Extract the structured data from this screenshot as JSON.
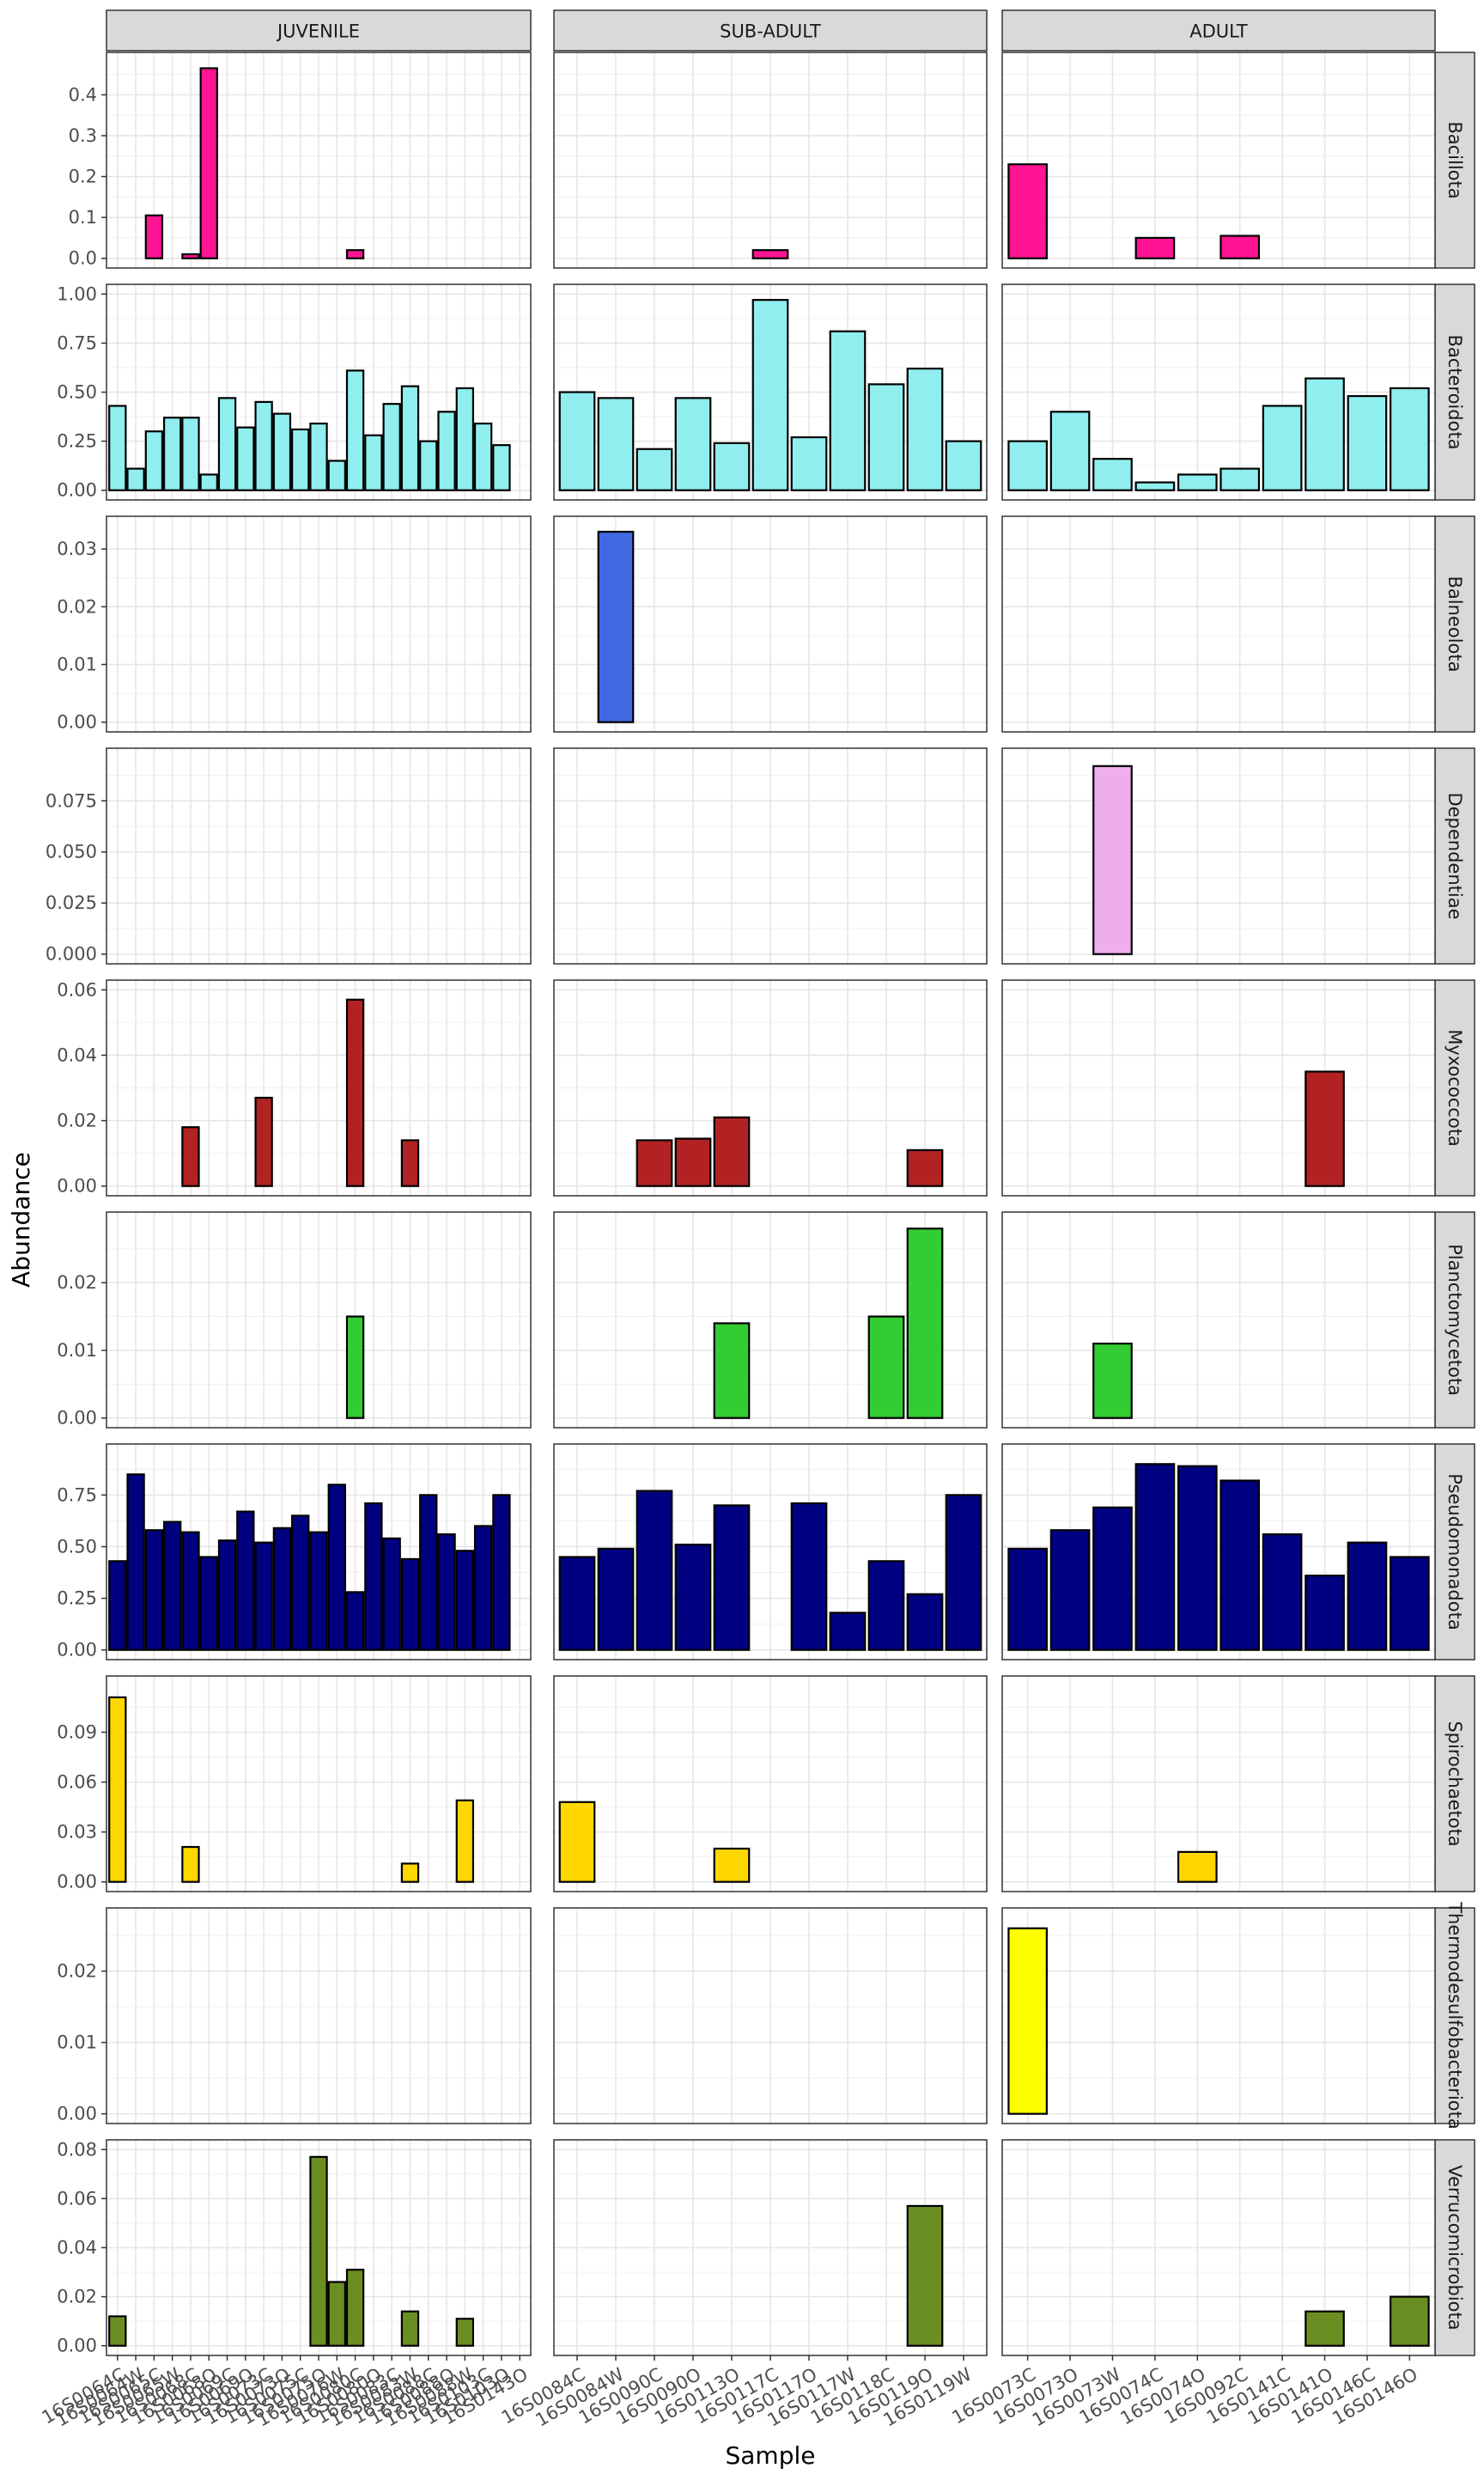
{
  "chart_data": {
    "type": "bar",
    "xlabel": "Sample",
    "ylabel": "Abundance",
    "legend": "none",
    "grid": true,
    "columns": [
      {
        "label": "JUVENILE",
        "samples": [
          "16S0064C",
          "16S0064W",
          "16S0065C",
          "16S0065W",
          "16S0068C",
          "16S0068O",
          "16S0069C",
          "16S0069O",
          "16S0073C",
          "16S0073O",
          "16S0075C",
          "16S0075O",
          "16S0076W",
          "16S0080C",
          "16S0080O",
          "16S0083C",
          "16S0083W",
          "16S0088C",
          "16S0088O",
          "16S0088W",
          "16S0103C",
          "16S0103O",
          "16S0143O"
        ],
        "tick_labels": [
          "16S0064C",
          "16S0064W",
          "16S0065C",
          "16S0065W",
          "16S0068C",
          "16S0068O",
          "16S0069C",
          "16S0069O",
          "16S0073C",
          "16S0073O",
          "16S0075C",
          "16S0075O",
          "16S0076W",
          "16S0080C",
          "16S0080O",
          "16S0083C",
          "16S0083W",
          "16S0088C",
          "16S0088O",
          "16S0088W",
          "16S0103C",
          "16S0103O",
          "16S0143O"
        ]
      },
      {
        "label": "SUB-ADULT",
        "samples": [
          "16S0084C",
          "16S0084W",
          "16S0090C",
          "16S0090O",
          "16S0113O",
          "16S0117C",
          "16S0117O",
          "16S0117W",
          "16S0118C",
          "16S0119O",
          "16S0119W"
        ],
        "tick_labels": [
          "16S0084C",
          "16S0084W",
          "16S0090C",
          "16S0090O",
          "16S0113O",
          "16S0117C",
          "16S0117O",
          "16S0117W",
          "16S0118C",
          "16S0119O",
          "16S0119W"
        ]
      },
      {
        "label": "ADULT",
        "samples": [
          "16S0073C",
          "16S0073O",
          "16S0073W",
          "16S0074C",
          "16S0074O",
          "16S0092C",
          "16S0141C",
          "16S0141O",
          "16S0146C",
          "16S0146O"
        ],
        "tick_labels": [
          "16S0073C",
          "16S0073O",
          "16S0073W",
          "16S0074C",
          "16S0074O",
          "16S0092C",
          "16S0141C",
          "16S0141O",
          "16S0146C",
          "16S0146O"
        ]
      }
    ],
    "rows": [
      {
        "label": "Bacillota",
        "color": "#ff1493",
        "ylim": [
          0,
          0.48
        ],
        "ticks": [
          0,
          0.1,
          0.2,
          0.3,
          0.4
        ],
        "tick_labels": [
          "0.0",
          "0.1",
          "0.2",
          "0.3",
          "0.4"
        ],
        "values": [
          [
            0,
            0,
            0.105,
            0,
            0.01,
            0.465,
            0,
            0,
            0,
            0,
            0,
            0,
            0,
            0.02,
            0,
            0,
            0,
            0,
            0,
            0,
            0,
            0,
            0
          ],
          [
            0,
            0,
            0,
            0,
            0,
            0.02,
            0,
            0,
            0,
            0,
            0
          ],
          [
            0.23,
            0,
            0,
            0.05,
            0,
            0.055,
            0,
            0,
            0,
            0
          ]
        ]
      },
      {
        "label": "Bacteroidota",
        "color": "#90eeee",
        "ylim": [
          0,
          1.0
        ],
        "ticks": [
          0,
          0.25,
          0.5,
          0.75,
          1.0
        ],
        "tick_labels": [
          "0.00",
          "0.25",
          "0.50",
          "0.75",
          "1.00"
        ],
        "values": [
          [
            0.43,
            0.11,
            0.3,
            0.37,
            0.37,
            0.08,
            0.47,
            0.32,
            0.45,
            0.39,
            0.31,
            0.34,
            0.15,
            0.61,
            0.28,
            0.44,
            0.53,
            0.25,
            0.4,
            0.52,
            0.34,
            0.23,
            0
          ],
          [
            0.5,
            0.47,
            0.21,
            0.47,
            0.24,
            0.97,
            0.27,
            0.81,
            0.54,
            0.62,
            0.25
          ],
          [
            0.25,
            0.4,
            0.16,
            0.04,
            0.08,
            0.11,
            0.43,
            0.57,
            0.48,
            0.52
          ]
        ]
      },
      {
        "label": "Balneolota",
        "color": "#4169e1",
        "ylim": [
          0,
          0.034
        ],
        "ticks": [
          0,
          0.01,
          0.02,
          0.03
        ],
        "tick_labels": [
          "0.00",
          "0.01",
          "0.02",
          "0.03"
        ],
        "values": [
          [
            0,
            0,
            0,
            0,
            0,
            0,
            0,
            0,
            0,
            0,
            0,
            0,
            0,
            0,
            0,
            0,
            0,
            0,
            0,
            0,
            0,
            0,
            0
          ],
          [
            0,
            0.033,
            0,
            0,
            0,
            0,
            0,
            0,
            0,
            0,
            0
          ],
          [
            0,
            0,
            0,
            0,
            0,
            0,
            0,
            0,
            0,
            0
          ]
        ]
      },
      {
        "label": "Dependentiae",
        "color": "#eeaeee",
        "ylim": [
          0,
          0.096
        ],
        "ticks": [
          0,
          0.025,
          0.05,
          0.075
        ],
        "tick_labels": [
          "0.000",
          "0.025",
          "0.050",
          "0.075"
        ],
        "values": [
          [
            0,
            0,
            0,
            0,
            0,
            0,
            0,
            0,
            0,
            0,
            0,
            0,
            0,
            0,
            0,
            0,
            0,
            0,
            0,
            0,
            0,
            0,
            0
          ],
          [
            0,
            0,
            0,
            0,
            0,
            0,
            0,
            0,
            0,
            0,
            0
          ],
          [
            0,
            0,
            0.092,
            0,
            0,
            0,
            0,
            0,
            0,
            0
          ]
        ]
      },
      {
        "label": "Myxococcota",
        "color": "#b22222",
        "ylim": [
          0,
          0.06
        ],
        "ticks": [
          0,
          0.02,
          0.04,
          0.06
        ],
        "tick_labels": [
          "0.00",
          "0.02",
          "0.04",
          "0.06"
        ],
        "values": [
          [
            0,
            0,
            0,
            0,
            0.018,
            0,
            0,
            0,
            0.027,
            0,
            0,
            0,
            0,
            0.057,
            0,
            0,
            0.014,
            0,
            0,
            0,
            0,
            0,
            0
          ],
          [
            0,
            0,
            0.014,
            0.0145,
            0.021,
            0,
            0,
            0,
            0,
            0.011,
            0
          ],
          [
            0,
            0,
            0,
            0,
            0,
            0,
            0,
            0.035,
            0,
            0
          ]
        ]
      },
      {
        "label": "Planctomycetota",
        "color": "#32cd32",
        "ylim": [
          0,
          0.029
        ],
        "ticks": [
          0,
          0.01,
          0.02
        ],
        "tick_labels": [
          "0.00",
          "0.01",
          "0.02"
        ],
        "values": [
          [
            0,
            0,
            0,
            0,
            0,
            0,
            0,
            0,
            0,
            0,
            0,
            0,
            0,
            0.015,
            0,
            0,
            0,
            0,
            0,
            0,
            0,
            0,
            0
          ],
          [
            0,
            0,
            0,
            0,
            0.014,
            0,
            0,
            0,
            0.015,
            0.028,
            0
          ],
          [
            0,
            0,
            0.011,
            0,
            0,
            0,
            0,
            0,
            0,
            0
          ]
        ]
      },
      {
        "label": "Pseudomonadota",
        "color": "#000080",
        "ylim": [
          0,
          0.95
        ],
        "ticks": [
          0,
          0.25,
          0.5,
          0.75
        ],
        "tick_labels": [
          "0.00",
          "0.25",
          "0.50",
          "0.75"
        ],
        "values": [
          [
            0.43,
            0.85,
            0.58,
            0.62,
            0.57,
            0.45,
            0.53,
            0.67,
            0.52,
            0.59,
            0.65,
            0.57,
            0.8,
            0.28,
            0.71,
            0.54,
            0.44,
            0.75,
            0.56,
            0.48,
            0.6,
            0.75,
            0
          ],
          [
            0.45,
            0.49,
            0.77,
            0.51,
            0.7,
            0,
            0.71,
            0.18,
            0.43,
            0.27,
            0.75
          ],
          [
            0.49,
            0.58,
            0.69,
            0.9,
            0.89,
            0.82,
            0.56,
            0.36,
            0.52,
            0.45
          ]
        ]
      },
      {
        "label": "Spirochaetota",
        "color": "#ffd700",
        "ylim": [
          0,
          0.118
        ],
        "ticks": [
          0,
          0.03,
          0.06,
          0.09
        ],
        "tick_labels": [
          "0.00",
          "0.03",
          "0.06",
          "0.09"
        ],
        "values": [
          [
            0.111,
            0,
            0,
            0,
            0.021,
            0,
            0,
            0,
            0,
            0,
            0,
            0,
            0,
            0,
            0,
            0,
            0.011,
            0,
            0,
            0.049,
            0,
            0,
            0
          ],
          [
            0.048,
            0,
            0,
            0,
            0.02,
            0,
            0,
            0,
            0,
            0,
            0
          ],
          [
            0,
            0,
            0,
            0,
            0.018,
            0,
            0,
            0,
            0,
            0
          ]
        ]
      },
      {
        "label": "Thermodesulfobacteriota",
        "color": "#ffff00",
        "ylim": [
          0,
          0.0275
        ],
        "ticks": [
          0,
          0.01,
          0.02
        ],
        "tick_labels": [
          "0.00",
          "0.01",
          "0.02"
        ],
        "values": [
          [
            0,
            0,
            0,
            0,
            0,
            0,
            0,
            0,
            0,
            0,
            0,
            0,
            0,
            0,
            0,
            0,
            0,
            0,
            0,
            0,
            0,
            0,
            0
          ],
          [
            0,
            0,
            0,
            0,
            0,
            0,
            0,
            0,
            0,
            0,
            0
          ],
          [
            0.026,
            0,
            0,
            0,
            0,
            0,
            0,
            0,
            0,
            0
          ]
        ]
      },
      {
        "label": "Verrucomicrobiota",
        "color": "#6b8e23",
        "ylim": [
          0,
          0.08
        ],
        "ticks": [
          0,
          0.02,
          0.04,
          0.06,
          0.08
        ],
        "tick_labels": [
          "0.00",
          "0.02",
          "0.04",
          "0.06",
          "0.08"
        ],
        "values": [
          [
            0.012,
            0,
            0,
            0,
            0,
            0,
            0,
            0,
            0,
            0,
            0,
            0.077,
            0.026,
            0.031,
            0,
            0,
            0.014,
            0,
            0,
            0.011,
            0,
            0,
            0
          ],
          [
            0,
            0,
            0,
            0,
            0,
            0,
            0,
            0,
            0,
            0.057,
            0
          ],
          [
            0,
            0,
            0,
            0,
            0,
            0,
            0,
            0.014,
            0,
            0.02
          ]
        ]
      }
    ]
  }
}
